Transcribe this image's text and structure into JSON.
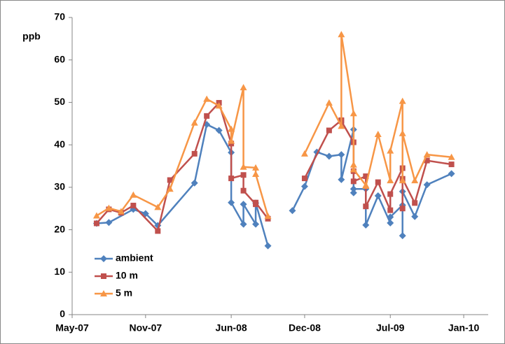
{
  "chart_data": {
    "type": "line",
    "y_label": "ppb",
    "xlim": [
      "2007-05",
      "2010-03"
    ],
    "xticks": [
      {
        "value": "2007-05",
        "label": "May-07"
      },
      {
        "value": "2007-11",
        "label": "Nov-07"
      },
      {
        "value": "2008-06",
        "label": "Jun-08"
      },
      {
        "value": "2008-12",
        "label": "Dec-08"
      },
      {
        "value": "2009-07",
        "label": "Jul-09"
      },
      {
        "value": "2010-01",
        "label": "Jan-10"
      }
    ],
    "ylim": [
      0,
      70
    ],
    "yticks": [
      0,
      10,
      20,
      30,
      40,
      50,
      60,
      70
    ],
    "legend": "lower-left",
    "series": [
      {
        "name": "ambient",
        "color": "#4f81bd",
        "marker": "diamond",
        "x": [
          "2007-07",
          "2007-08",
          "2007-10",
          "2007-11",
          "2007-12",
          "2008-03",
          "2008-04",
          "2008-05",
          "2008-06",
          "2008-06",
          "2008-07",
          "2008-07",
          "2008-08",
          "2008-08",
          "2008-09",
          "2008-10",
          "2008-11",
          "2008-12",
          "2009-01",
          "2009-02",
          "2009-03",
          "2009-03",
          "2009-04",
          "2009-04",
          "2009-04",
          "2009-05",
          "2009-05",
          "2009-06",
          "2009-07",
          "2009-07",
          "2009-08",
          "2009-08",
          "2009-08",
          "2009-09",
          "2009-10",
          "2009-12"
        ],
        "values": [
          21.5,
          21.7,
          24.8,
          23.8,
          21.0,
          31.0,
          44.8,
          43.4,
          38.2,
          26.4,
          21.3,
          26.0,
          21.3,
          26.3,
          16.2,
          null,
          24.5,
          30.2,
          38.3,
          37.3,
          37.7,
          31.8,
          43.6,
          28.7,
          29.6,
          29.6,
          21.1,
          28.0,
          21.6,
          23.0,
          25.8,
          18.6,
          29.0,
          23.1,
          30.6,
          33.2
        ]
      },
      {
        "name": "10 m",
        "color": "#c0504d",
        "marker": "square",
        "x": [
          "2007-07",
          "2007-08",
          "2007-09",
          "2007-10",
          "2007-12",
          "2008-01",
          "2008-03",
          "2008-04",
          "2008-05",
          "2008-06",
          "2008-06",
          "2008-07",
          "2008-07",
          "2008-08",
          "2008-08",
          "2008-09",
          "2008-10",
          "2008-12",
          "2009-02",
          "2009-03",
          "2009-03",
          "2009-04",
          "2009-04",
          "2009-04",
          "2009-05",
          "2009-05",
          "2009-06",
          "2009-07",
          "2009-07",
          "2009-08",
          "2009-08",
          "2009-08",
          "2009-09",
          "2009-10",
          "2009-12"
        ],
        "values": [
          21.5,
          24.8,
          24.0,
          25.7,
          19.7,
          31.7,
          37.9,
          46.8,
          49.9,
          40.3,
          32.1,
          32.9,
          29.2,
          26.0,
          26.4,
          22.6,
          null,
          32.1,
          43.4,
          45.8,
          45.6,
          40.6,
          33.8,
          31.4,
          32.6,
          25.5,
          31.2,
          24.6,
          28.4,
          34.5,
          25.0,
          32.0,
          26.3,
          36.3,
          35.4
        ]
      },
      {
        "name": "5 m",
        "color": "#f79646",
        "marker": "triangle",
        "x": [
          "2007-07",
          "2007-08",
          "2007-09",
          "2007-10",
          "2007-12",
          "2008-01",
          "2008-03",
          "2008-04",
          "2008-05",
          "2008-06",
          "2008-06",
          "2008-07",
          "2008-07",
          "2008-08",
          "2008-08",
          "2008-09",
          "2008-10",
          "2008-12",
          "2009-02",
          "2009-03",
          "2009-03",
          "2009-04",
          "2009-04",
          "2009-04",
          "2009-05",
          "2009-05",
          "2009-06",
          "2009-07",
          "2009-07",
          "2009-08",
          "2009-08",
          "2009-08",
          "2009-09",
          "2009-10",
          "2009-12"
        ],
        "values": [
          23.3,
          25.1,
          24.3,
          28.2,
          25.3,
          29.6,
          45.2,
          50.8,
          49.2,
          43.7,
          40.9,
          53.5,
          34.8,
          34.6,
          33.1,
          23.2,
          null,
          37.9,
          49.9,
          44.4,
          66.0,
          47.4,
          35.3,
          34.2,
          30.5,
          30.3,
          42.5,
          31.6,
          38.6,
          50.3,
          31.6,
          42.7,
          31.6,
          37.7,
          37.1
        ]
      }
    ]
  }
}
